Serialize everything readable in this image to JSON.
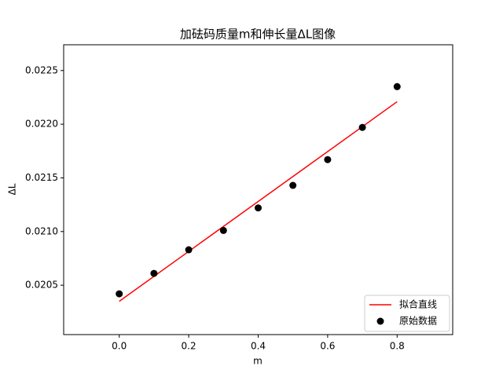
{
  "chart_data": {
    "type": "scatter",
    "title": "加砝码质量m和伸长量ΔL图像",
    "x_label": "m",
    "y_label": "ΔL",
    "xlim": [
      -0.16,
      0.96
    ],
    "ylim": [
      0.02004,
      0.02274
    ],
    "xticks": [
      {
        "value": 0,
        "label": "0.0"
      },
      0.2,
      0.4,
      0.6,
      0.8
    ],
    "yticks": [
      0.0205,
      {
        "value": 0.021,
        "label": "0.0210"
      },
      0.0215,
      {
        "value": 0.022,
        "label": "0.0220"
      },
      0.0225
    ],
    "grid": false,
    "legend": "lower right",
    "series": [
      {
        "name": "拟合直线",
        "type": "line",
        "color": "#ff0000",
        "x": [
          0,
          0.8
        ],
        "values": [
          0.02035,
          0.02221
        ]
      },
      {
        "name": "原始数据",
        "type": "scatter",
        "color": "#000000",
        "x": [
          0,
          0.1,
          0.2,
          0.3,
          0.4,
          0.5,
          0.6,
          0.7,
          0.8
        ],
        "values": [
          0.02042,
          0.02061,
          0.02083,
          0.02101,
          0.02122,
          0.02143,
          0.02167,
          0.02197,
          0.02235
        ]
      }
    ]
  }
}
